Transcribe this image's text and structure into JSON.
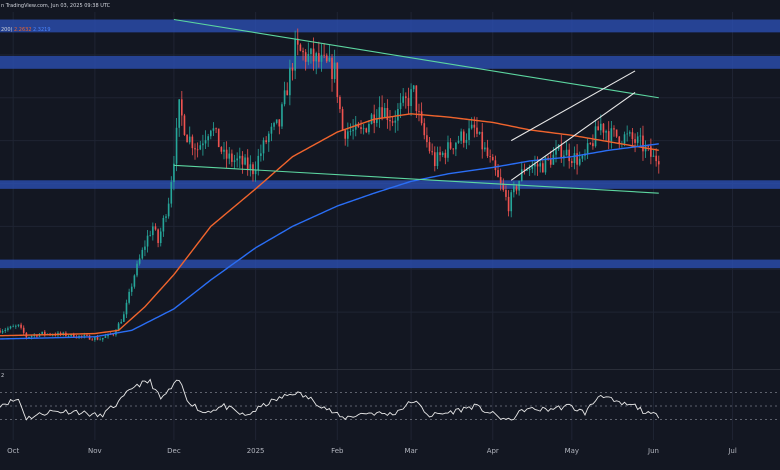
{
  "header": {
    "source_line": "n TradingView.com, Jun 03, 2025 09:38 UTC",
    "indicator_line_label": "200)",
    "ma_value_orange": "2.2632",
    "ma_value_blue": "2.3219",
    "rsi_pane_label": "2"
  },
  "colors": {
    "background": "#131722",
    "grid": "#1f2433",
    "candle_up": "#26a69a",
    "candle_down": "#ef5350",
    "ma_orange": "#f0642d",
    "ma_blue": "#2a6ef5",
    "zone": "#2b4fb5",
    "channel_green": "#5cd6a0",
    "wedge_white": "#e8e8e8",
    "rsi_line": "#e8e8e8",
    "rsi_levels": "#787b86"
  },
  "chart_data": [
    {
      "type": "candlestick",
      "x_axis": {
        "type": "date",
        "range": [
          "2024-09-26",
          "2025-07-19"
        ],
        "tick_labels": [
          {
            "date": "2024-10-01",
            "label": "Oct"
          },
          {
            "date": "2024-11-01",
            "label": "Nov"
          },
          {
            "date": "2024-12-01",
            "label": "Dec"
          },
          {
            "date": "2025-01-01",
            "label": "2025"
          },
          {
            "date": "2025-02-01",
            "label": "Feb"
          },
          {
            "date": "2025-03-01",
            "label": "Mar"
          },
          {
            "date": "2025-04-01",
            "label": "Apr"
          },
          {
            "date": "2025-05-01",
            "label": "May"
          },
          {
            "date": "2025-06-01",
            "label": "Jun"
          },
          {
            "date": "2025-07-01",
            "label": "Jul"
          }
        ]
      },
      "y_axis": {
        "range": [
          0.35,
          3.55
        ],
        "tick_labels": []
      },
      "grid": true,
      "price_anchors": [
        [
          "2024-09-26",
          0.58
        ],
        [
          "2024-10-03",
          0.62
        ],
        [
          "2024-10-06",
          0.52
        ],
        [
          "2024-10-12",
          0.55
        ],
        [
          "2024-10-20",
          0.54
        ],
        [
          "2024-10-28",
          0.52
        ],
        [
          "2024-11-03",
          0.5
        ],
        [
          "2024-11-08",
          0.55
        ],
        [
          "2024-11-12",
          0.72
        ],
        [
          "2024-11-16",
          1.1
        ],
        [
          "2024-11-21",
          1.45
        ],
        [
          "2024-11-23",
          1.55
        ],
        [
          "2024-11-25",
          1.4
        ],
        [
          "2024-11-29",
          1.8
        ],
        [
          "2024-12-02",
          2.4
        ],
        [
          "2024-12-03",
          2.65
        ],
        [
          "2024-12-06",
          2.4
        ],
        [
          "2024-12-10",
          2.28
        ],
        [
          "2024-12-15",
          2.5
        ],
        [
          "2024-12-20",
          2.2
        ],
        [
          "2024-12-26",
          2.15
        ],
        [
          "2024-12-31",
          2.08
        ],
        [
          "2025-01-06",
          2.4
        ],
        [
          "2025-01-10",
          2.5
        ],
        [
          "2025-01-16",
          3.2
        ],
        [
          "2025-01-19",
          3.15
        ],
        [
          "2025-01-24",
          3.1
        ],
        [
          "2025-01-31",
          3.0
        ],
        [
          "2025-02-03",
          2.45
        ],
        [
          "2025-02-10",
          2.42
        ],
        [
          "2025-02-17",
          2.68
        ],
        [
          "2025-02-22",
          2.55
        ],
        [
          "2025-03-02",
          2.8
        ],
        [
          "2025-03-05",
          2.45
        ],
        [
          "2025-03-10",
          2.15
        ],
        [
          "2025-03-18",
          2.35
        ],
        [
          "2025-03-25",
          2.45
        ],
        [
          "2025-04-01",
          2.1
        ],
        [
          "2025-04-07",
          1.75
        ],
        [
          "2025-04-13",
          2.1
        ],
        [
          "2025-04-20",
          2.12
        ],
        [
          "2025-04-27",
          2.26
        ],
        [
          "2025-05-05",
          2.15
        ],
        [
          "2025-05-12",
          2.5
        ],
        [
          "2025-05-16",
          2.4
        ],
        [
          "2025-05-22",
          2.38
        ],
        [
          "2025-05-27",
          2.32
        ],
        [
          "2025-06-01",
          2.18
        ],
        [
          "2025-06-03",
          2.2
        ]
      ],
      "overlays": {
        "ma_orange": [
          [
            "2024-09-26",
            0.53
          ],
          [
            "2024-10-15",
            0.54
          ],
          [
            "2024-11-01",
            0.55
          ],
          [
            "2024-11-10",
            0.58
          ],
          [
            "2024-11-20",
            0.8
          ],
          [
            "2024-12-01",
            1.1
          ],
          [
            "2024-12-15",
            1.55
          ],
          [
            "2025-01-01",
            1.9
          ],
          [
            "2025-01-15",
            2.2
          ],
          [
            "2025-02-01",
            2.43
          ],
          [
            "2025-02-15",
            2.55
          ],
          [
            "2025-03-01",
            2.6
          ],
          [
            "2025-03-15",
            2.57
          ],
          [
            "2025-04-01",
            2.52
          ],
          [
            "2025-04-15",
            2.45
          ],
          [
            "2025-05-01",
            2.4
          ],
          [
            "2025-05-15",
            2.34
          ],
          [
            "2025-06-03",
            2.26
          ]
        ],
        "ma_blue": [
          [
            "2024-09-26",
            0.5
          ],
          [
            "2024-10-15",
            0.51
          ],
          [
            "2024-11-01",
            0.52
          ],
          [
            "2024-11-15",
            0.58
          ],
          [
            "2024-12-01",
            0.78
          ],
          [
            "2024-12-15",
            1.05
          ],
          [
            "2025-01-01",
            1.35
          ],
          [
            "2025-01-15",
            1.55
          ],
          [
            "2025-02-01",
            1.74
          ],
          [
            "2025-02-15",
            1.86
          ],
          [
            "2025-03-01",
            1.97
          ],
          [
            "2025-03-15",
            2.04
          ],
          [
            "2025-04-01",
            2.1
          ],
          [
            "2025-04-15",
            2.16
          ],
          [
            "2025-05-01",
            2.2
          ],
          [
            "2025-05-15",
            2.26
          ],
          [
            "2025-06-03",
            2.32
          ]
        ],
        "zones": [
          [
            3.36,
            3.48
          ],
          [
            3.02,
            3.14
          ],
          [
            1.9,
            1.98
          ],
          [
            1.16,
            1.24
          ]
        ],
        "channel_lines": [
          [
            [
              "2024-12-01",
              3.48
            ],
            [
              "2025-06-03",
              2.75
            ]
          ],
          [
            [
              "2024-12-01",
              2.12
            ],
            [
              "2025-06-03",
              1.86
            ]
          ]
        ],
        "wedge_lines": [
          [
            [
              "2025-04-08",
              1.98
            ],
            [
              "2025-05-25",
              2.8
            ]
          ],
          [
            [
              "2025-04-08",
              2.35
            ],
            [
              "2025-05-25",
              3.0
            ]
          ]
        ]
      }
    },
    {
      "type": "line",
      "name": "",
      "x_axis": {
        "type": "date",
        "range": [
          "2024-09-26",
          "2025-07-19"
        ]
      },
      "y_axis": {
        "range": [
          0,
          100
        ]
      },
      "levels": [
        70,
        50,
        30
      ],
      "anchors": [
        [
          "2024-09-26",
          52
        ],
        [
          "2024-10-03",
          60
        ],
        [
          "2024-10-06",
          32
        ],
        [
          "2024-10-15",
          42
        ],
        [
          "2024-10-25",
          42
        ],
        [
          "2024-11-03",
          35
        ],
        [
          "2024-11-10",
          55
        ],
        [
          "2024-11-16",
          80
        ],
        [
          "2024-11-22",
          86
        ],
        [
          "2024-11-26",
          60
        ],
        [
          "2024-12-03",
          88
        ],
        [
          "2024-12-06",
          60
        ],
        [
          "2024-12-12",
          40
        ],
        [
          "2024-12-20",
          50
        ],
        [
          "2024-12-28",
          35
        ],
        [
          "2025-01-06",
          55
        ],
        [
          "2025-01-16",
          70
        ],
        [
          "2025-01-22",
          60
        ],
        [
          "2025-02-03",
          32
        ],
        [
          "2025-02-12",
          40
        ],
        [
          "2025-02-22",
          38
        ],
        [
          "2025-03-02",
          58
        ],
        [
          "2025-03-08",
          36
        ],
        [
          "2025-03-15",
          40
        ],
        [
          "2025-03-25",
          50
        ],
        [
          "2025-04-01",
          38
        ],
        [
          "2025-04-07",
          28
        ],
        [
          "2025-04-13",
          45
        ],
        [
          "2025-04-22",
          45
        ],
        [
          "2025-04-30",
          50
        ],
        [
          "2025-05-06",
          40
        ],
        [
          "2025-05-12",
          68
        ],
        [
          "2025-05-18",
          54
        ],
        [
          "2025-05-25",
          50
        ],
        [
          "2025-05-30",
          38
        ],
        [
          "2025-06-03",
          36
        ]
      ]
    }
  ]
}
